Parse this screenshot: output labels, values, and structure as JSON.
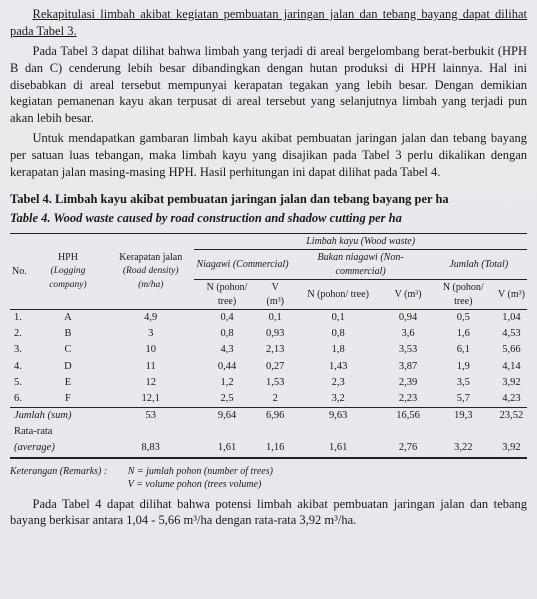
{
  "paragraphs": {
    "p1": "Rekapitulasi limbah akibat kegiatan pembuatan jaringan jalan dan tebang bayang dapat dilihat pada Tabel 3.",
    "p2": "Pada Tabel 3 dapat dilihat bahwa  limbah yang  terjadi di areal bergelombang berat-berbukit (HPH B dan C) cenderung lebih besar dibandingkan dengan hutan produksi di HPH lainnya.  Hal ini disebabkan di areal tersebut mempunyai kerapatan tegakan yang lebih besar.  Dengan demikian kegiatan pemanenan kayu akan terpusat di areal tersebut yang selanjutnya limbah yang terjadi pun akan lebih besar.",
    "p3": "Untuk mendapatkan gambaran limbah kayu akibat pembuatan jaringan jalan dan tebang bayang per satuan luas tebangan, maka limbah kayu yang disajikan pada Tabel 3 perlu dikalikan dengan kerapatan jalan masing-masing HPH. Hasil perhitungan ini dapat dilihat pada Tabel 4.",
    "p4": "Pada Tabel 4 dapat dilihat bahwa potensi limbah akibat pembuatan jaringan jalan dan tebang bayang berkisar antara 1,04 - 5,66 m³/ha dengan rata-rata 3,92 m³/ha."
  },
  "table_caption": {
    "id_label": "Tabel 4.",
    "id_text": "Limbah kayu akibat pembuatan jaringan jalan dan tebang bayang per ha",
    "en_label": "Table 4.",
    "en_text": "Wood waste caused by road construction and shadow cutting per ha"
  },
  "table_headers": {
    "no": "No.",
    "hph": "HPH",
    "hph_sub": "(Logging company)",
    "rd": "Kerapatan jalan",
    "rd_sub": "(Road density) (m/ha)",
    "ww_title": "Limbah kayu (Wood waste)",
    "niagawi": "Niagawi (Commercial)",
    "non_niagawi": "Bukan niagawi (Non-commercial)",
    "total": "Jumlah (Total)",
    "n": "N (pohon/ tree)",
    "v": "V (m³)"
  },
  "rows": [
    {
      "no": "1.",
      "hph": "A",
      "rd": "4,9",
      "cn": "0,4",
      "cv": "0,1",
      "nn": "0,1",
      "nv": "0,94",
      "tn": "0,5",
      "tv": "1,04"
    },
    {
      "no": "2.",
      "hph": "B",
      "rd": "3",
      "cn": "0,8",
      "cv": "0,93",
      "nn": "0,8",
      "nv": "3,6",
      "tn": "1,6",
      "tv": "4,53"
    },
    {
      "no": "3.",
      "hph": "C",
      "rd": "10",
      "cn": "4,3",
      "cv": "2,13",
      "nn": "1,8",
      "nv": "3,53",
      "tn": "6,1",
      "tv": "5,66"
    },
    {
      "no": "4.",
      "hph": "D",
      "rd": "11",
      "cn": "0,44",
      "cv": "0,27",
      "nn": "1,43",
      "nv": "3,87",
      "tn": "1,9",
      "tv": "4,14"
    },
    {
      "no": "5.",
      "hph": "E",
      "rd": "12",
      "cn": "1,2",
      "cv": "1,53",
      "nn": "2,3",
      "nv": "2,39",
      "tn": "3,5",
      "tv": "3,92"
    },
    {
      "no": "6.",
      "hph": "F",
      "rd": "12,1",
      "cn": "2,5",
      "cv": "2",
      "nn": "3,2",
      "nv": "2,23",
      "tn": "5,7",
      "tv": "4,23"
    }
  ],
  "summary": {
    "sum_label": "Jumlah (sum)",
    "avg_label1": "Rata-rata",
    "avg_label2": "(average)",
    "sum": {
      "rd": "53",
      "cn": "9,64",
      "cv": "6,96",
      "nn": "9,63",
      "nv": "16,56",
      "tn": "19,3",
      "tv": "23,52"
    },
    "avg": {
      "rd": "8,83",
      "cn": "1,61",
      "cv": "1,16",
      "nn": "1,61",
      "nv": "2,76",
      "tn": "3,22",
      "tv": "3,92"
    }
  },
  "remarks": {
    "label": "Keterangan (Remarks) :",
    "n_line": "N = jumlah pohon (number of trees)",
    "v_line": "V = volume pohon (trees volume)"
  }
}
